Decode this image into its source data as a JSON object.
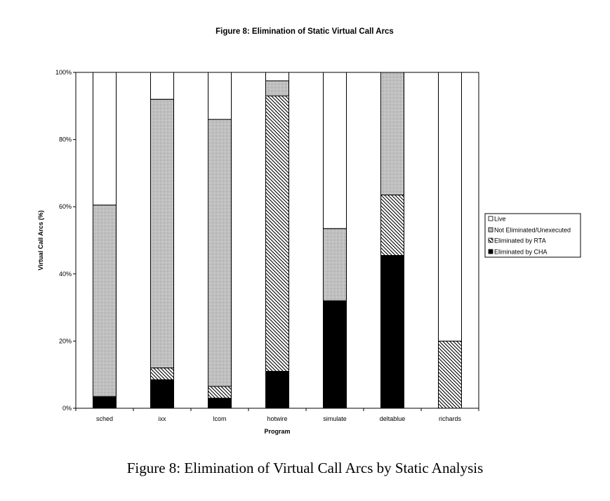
{
  "caption": "Figure 8: Elimination of Virtual Call Arcs by Static Analysis",
  "chart_data": {
    "type": "bar",
    "stacked": true,
    "percent": true,
    "title": "Figure 8: Elimination of Static Virtual Call Arcs",
    "xlabel": "Program",
    "ylabel": "Virtual Call Arcs (%)",
    "ylim": [
      0,
      100
    ],
    "yticks": [
      0,
      20,
      40,
      60,
      80,
      100
    ],
    "ytick_labels": [
      "0%",
      "20%",
      "40%",
      "60%",
      "80%",
      "100%"
    ],
    "categories": [
      "sched",
      "ixx",
      "lcom",
      "hotwire",
      "simulate",
      "deltablue",
      "richards"
    ],
    "series": [
      {
        "name": "Eliminated by CHA",
        "pattern": "solid-black",
        "values": [
          3.5,
          8.5,
          3,
          11,
          32,
          45.5,
          0
        ]
      },
      {
        "name": "Eliminated by RTA",
        "pattern": "diagonal-hatch",
        "values": [
          0,
          3.5,
          3.5,
          82,
          0,
          18,
          20
        ]
      },
      {
        "name": "Not Eliminated/Unexecuted",
        "pattern": "gray-dotted",
        "values": [
          57,
          80,
          79.5,
          4.5,
          21.5,
          36.5,
          0
        ]
      },
      {
        "name": "Live",
        "pattern": "white",
        "values": [
          39.5,
          8,
          14,
          2.5,
          46.5,
          0,
          80
        ]
      }
    ],
    "legend": {
      "placement": "right",
      "entries": [
        "Live",
        "Not Eliminated/Unexecuted",
        "Eliminated by RTA",
        "Eliminated by CHA"
      ]
    },
    "grid": false
  }
}
